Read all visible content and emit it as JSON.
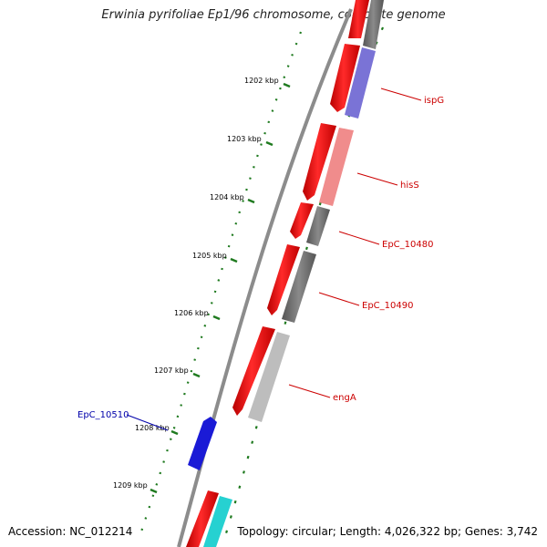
{
  "title": "Erwinia pyrifoliae Ep1/96 chromosome, complete genome",
  "accession": "Accession: NC_012214",
  "summary": "Topology: circular; Length: 4,026,322 bp; Genes: 3,742",
  "ticks": [
    "1202 kbp",
    "1203 kbp",
    "1204 kbp",
    "1205 kbp",
    "1206 kbp",
    "1207 kbp",
    "1208 kbp",
    "1209 kbp"
  ],
  "genes": [
    {
      "name": "ispG",
      "color": "#cc0000",
      "fill": "#7a73d6"
    },
    {
      "name": "hisS",
      "color": "#cc0000",
      "fill": "#f08c8c"
    },
    {
      "name": "EpC_10480",
      "color": "#cc0000",
      "fill": "#6e6e6e"
    },
    {
      "name": "EpC_10490",
      "color": "#cc0000",
      "fill": "#6e6e6e"
    },
    {
      "name": "engA",
      "color": "#cc0000",
      "fill": "#bdbdbd"
    },
    {
      "name": "EpC_10510",
      "color": "#0000aa",
      "fill": "#1a1ad6"
    }
  ],
  "colors": {
    "strand_forward": "#ff0000",
    "backbone": "#808080",
    "gc_dots": "#1f7a1f",
    "extra_tile": "#26d1d1"
  }
}
